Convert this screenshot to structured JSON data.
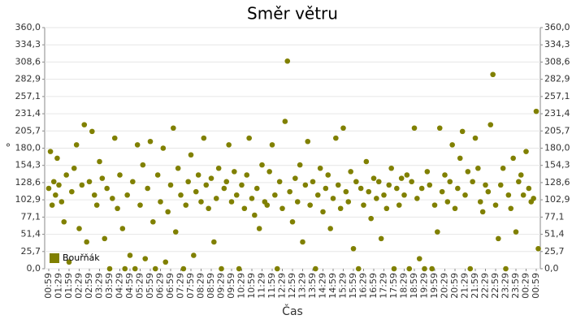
{
  "chart_data": {
    "type": "scatter",
    "title": "Směr větru",
    "x_label": "Čas",
    "y_label": "°",
    "grid": true,
    "legend": "bottom-left",
    "xlim": [
      -12,
      1452
    ],
    "ylim": [
      0,
      360
    ],
    "xticks": [
      {
        "value": 0,
        "label": "00:59"
      },
      {
        "value": 30,
        "label": "01:29"
      },
      {
        "value": 60,
        "label": "01:59"
      },
      {
        "value": 90,
        "label": "02:29"
      },
      {
        "value": 120,
        "label": "02:59"
      },
      {
        "value": 150,
        "label": "03:29"
      },
      {
        "value": 180,
        "label": "03:59"
      },
      {
        "value": 210,
        "label": "04:29"
      },
      {
        "value": 240,
        "label": "04:59"
      },
      {
        "value": 270,
        "label": "05:29"
      },
      {
        "value": 300,
        "label": "05:59"
      },
      {
        "value": 330,
        "label": "06:29"
      },
      {
        "value": 360,
        "label": "06:59"
      },
      {
        "value": 390,
        "label": "07:29"
      },
      {
        "value": 420,
        "label": "07:59"
      },
      {
        "value": 450,
        "label": "08:29"
      },
      {
        "value": 480,
        "label": "08:59"
      },
      {
        "value": 510,
        "label": "09:29"
      },
      {
        "value": 540,
        "label": "09:59"
      },
      {
        "value": 570,
        "label": "10:29"
      },
      {
        "value": 600,
        "label": "10:59"
      },
      {
        "value": 630,
        "label": "11:29"
      },
      {
        "value": 660,
        "label": "11:59"
      },
      {
        "value": 690,
        "label": "12:29"
      },
      {
        "value": 720,
        "label": "12:59"
      },
      {
        "value": 750,
        "label": "13:29"
      },
      {
        "value": 780,
        "label": "13:59"
      },
      {
        "value": 810,
        "label": "14:29"
      },
      {
        "value": 840,
        "label": "14:59"
      },
      {
        "value": 870,
        "label": "15:29"
      },
      {
        "value": 900,
        "label": "15:59"
      },
      {
        "value": 930,
        "label": "16:29"
      },
      {
        "value": 960,
        "label": "16:59"
      },
      {
        "value": 990,
        "label": "17:29"
      },
      {
        "value": 1020,
        "label": "17:59"
      },
      {
        "value": 1050,
        "label": "18:29"
      },
      {
        "value": 1080,
        "label": "18:59"
      },
      {
        "value": 1110,
        "label": "19:29"
      },
      {
        "value": 1140,
        "label": "19:59"
      },
      {
        "value": 1170,
        "label": "20:29"
      },
      {
        "value": 1200,
        "label": "20:59"
      },
      {
        "value": 1230,
        "label": "21:29"
      },
      {
        "value": 1260,
        "label": "21:59"
      },
      {
        "value": 1290,
        "label": "22:29"
      },
      {
        "value": 1320,
        "label": "22:59"
      },
      {
        "value": 1350,
        "label": "23:29"
      },
      {
        "value": 1380,
        "label": "23:59"
      },
      {
        "value": 1410,
        "label": "00:29"
      },
      {
        "value": 1440,
        "label": "00:59"
      }
    ],
    "yticks": [
      {
        "value": 0,
        "label": "0,0"
      },
      {
        "value": 25.7,
        "label": "25,7"
      },
      {
        "value": 51.4,
        "label": "51,4"
      },
      {
        "value": 77.1,
        "label": "77,1"
      },
      {
        "value": 102.9,
        "label": "102,9"
      },
      {
        "value": 128.6,
        "label": "128,6"
      },
      {
        "value": 154.3,
        "label": "154,3"
      },
      {
        "value": 180,
        "label": "180,0"
      },
      {
        "value": 205.7,
        "label": "205,7"
      },
      {
        "value": 231.4,
        "label": "231,4"
      },
      {
        "value": 257.1,
        "label": "257,1"
      },
      {
        "value": 282.9,
        "label": "282,9"
      },
      {
        "value": 308.6,
        "label": "308,6"
      },
      {
        "value": 334.3,
        "label": "334,3"
      },
      {
        "value": 360,
        "label": "360,0"
      }
    ],
    "series": [
      {
        "name": "Bouřňák",
        "color": "#808000",
        "x": [
          0,
          5,
          10,
          15,
          20,
          25,
          30,
          38,
          45,
          52,
          60,
          68,
          75,
          82,
          90,
          98,
          105,
          112,
          120,
          128,
          135,
          142,
          150,
          158,
          165,
          172,
          180,
          188,
          195,
          203,
          210,
          218,
          225,
          232,
          240,
          248,
          255,
          262,
          270,
          278,
          285,
          292,
          300,
          308,
          315,
          322,
          330,
          338,
          345,
          352,
          360,
          368,
          375,
          382,
          390,
          398,
          405,
          412,
          420,
          428,
          435,
          442,
          450,
          458,
          465,
          472,
          480,
          488,
          495,
          502,
          510,
          518,
          525,
          532,
          540,
          548,
          555,
          562,
          570,
          578,
          585,
          592,
          600,
          608,
          615,
          622,
          630,
          638,
          645,
          652,
          660,
          668,
          675,
          682,
          690,
          698,
          705,
          712,
          720,
          728,
          735,
          742,
          750,
          758,
          765,
          772,
          780,
          788,
          795,
          802,
          810,
          818,
          825,
          832,
          840,
          848,
          855,
          862,
          870,
          878,
          885,
          892,
          900,
          908,
          915,
          922,
          930,
          938,
          945,
          952,
          960,
          968,
          975,
          982,
          990,
          998,
          1005,
          1012,
          1020,
          1028,
          1035,
          1042,
          1050,
          1058,
          1065,
          1072,
          1080,
          1088,
          1095,
          1102,
          1110,
          1118,
          1125,
          1132,
          1140,
          1148,
          1155,
          1162,
          1170,
          1178,
          1185,
          1192,
          1200,
          1208,
          1215,
          1222,
          1230,
          1238,
          1245,
          1252,
          1260,
          1268,
          1275,
          1282,
          1290,
          1298,
          1305,
          1312,
          1320,
          1328,
          1335,
          1342,
          1350,
          1358,
          1365,
          1372,
          1380,
          1388,
          1395,
          1402,
          1410,
          1418,
          1425,
          1432,
          1440,
          1446
        ],
        "values": [
          120,
          175,
          95,
          130,
          110,
          165,
          125,
          100,
          70,
          140,
          10,
          115,
          150,
          185,
          60,
          125,
          215,
          40,
          130,
          205,
          110,
          95,
          160,
          135,
          45,
          120,
          0,
          105,
          195,
          90,
          140,
          60,
          0,
          110,
          20,
          130,
          0,
          185,
          95,
          155,
          15,
          120,
          190,
          70,
          0,
          140,
          100,
          180,
          10,
          85,
          125,
          210,
          55,
          150,
          110,
          0,
          95,
          130,
          170,
          20,
          115,
          140,
          100,
          195,
          125,
          90,
          135,
          40,
          105,
          150,
          0,
          120,
          130,
          185,
          100,
          145,
          110,
          0,
          125,
          90,
          140,
          195,
          105,
          80,
          120,
          60,
          155,
          100,
          95,
          145,
          185,
          110,
          0,
          130,
          90,
          220,
          310,
          115,
          70,
          135,
          100,
          155,
          40,
          125,
          190,
          95,
          130,
          0,
          110,
          150,
          85,
          120,
          140,
          60,
          105,
          195,
          125,
          90,
          210,
          115,
          100,
          145,
          30,
          130,
          0,
          120,
          95,
          160,
          115,
          75,
          135,
          105,
          130,
          45,
          110,
          90,
          125,
          150,
          0,
          120,
          95,
          135,
          110,
          140,
          0,
          130,
          210,
          105,
          15,
          120,
          0,
          145,
          125,
          0,
          95,
          55,
          210,
          115,
          140,
          100,
          130,
          185,
          90,
          120,
          165,
          205,
          110,
          145,
          0,
          130,
          195,
          150,
          100,
          85,
          125,
          115,
          215,
          290,
          95,
          45,
          125,
          150,
          0,
          110,
          90,
          165,
          55,
          130,
          140,
          110,
          175,
          120,
          100,
          105,
          235,
          30
        ]
      }
    ]
  }
}
